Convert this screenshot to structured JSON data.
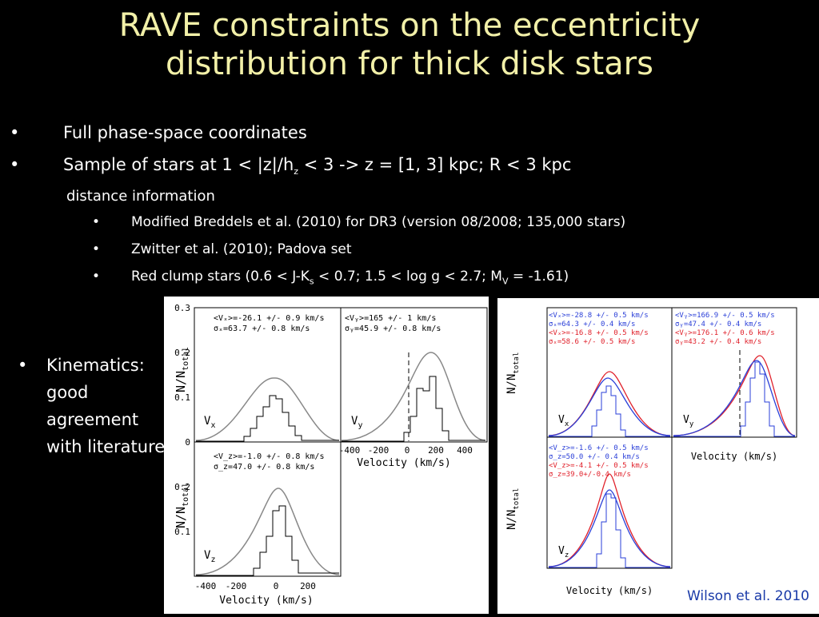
{
  "title": {
    "line1": "RAVE constraints on the eccentricity",
    "line2": "distribution for thick disk stars"
  },
  "bullets": {
    "b1": "Full phase-space coordinates",
    "b2_pre": "Sample of stars at 1 < |z|/h",
    "b2_sub": "z",
    "b2_post": " < 3 -> z = [1, 3] kpc; R < 3 kpc",
    "b2_cont": "distance information",
    "s1": "Modified Breddels et al. (2010) for DR3 (version 08/2008; 135,000 stars)",
    "s2": "Zwitter et al. (2010); Padova set",
    "s3_pre": "Red clump stars  (0.6 < J-K",
    "s3_sub1": "s",
    "s3_mid": " < 0.7; 1.5 < log g < 2.7; M",
    "s3_sub2": "V",
    "s3_post": " = -1.61)"
  },
  "kinematics": "Kinematics: good agreement with literature",
  "citation": "Wilson et al. 2010",
  "left_figure": {
    "ylabel": "N/N",
    "ylabel_sub": "total",
    "xlabel": "Velocity (km/s)",
    "yticks": [
      "0",
      "0.1",
      "0.2",
      "0.3"
    ],
    "xticks": [
      "-400",
      "-200",
      "0",
      "200",
      "400"
    ],
    "vx": {
      "label": "V",
      "sub": "x",
      "mean": "<Vₓ>=-26.1 +/- 0.9 km/s",
      "sigma": "σₓ=63.7 +/- 0.8 km/s"
    },
    "vy": {
      "label": "V",
      "sub": "y",
      "mean": "<Vᵧ>=165 +/- 1 km/s",
      "sigma": "σᵧ=45.9 +/- 0.8 km/s"
    },
    "vz": {
      "label": "V",
      "sub": "z",
      "mean": "<V_z>=-1.0 +/- 0.8 km/s",
      "sigma": "σ_z=47.0 +/- 0.8 km/s"
    }
  },
  "right_figure": {
    "ylabel": "N/N",
    "ylabel_sub": "total",
    "xlabel": "Velocity (km/s)",
    "vx": {
      "label": "V",
      "sub": "x",
      "blue": [
        "<Vₓ>=-28.8 +/- 0.5 km/s",
        "σₓ=64.3 +/- 0.4 km/s"
      ],
      "red": [
        "<Vₓ>=-16.8 +/- 0.5 km/s",
        "σₓ=58.6 +/- 0.5 km/s"
      ]
    },
    "vy": {
      "label": "V",
      "sub": "y",
      "blue": [
        "<Vᵧ>=166.9 +/- 0.5 km/s",
        "σᵧ=47.4 +/- 0.4 km/s"
      ],
      "red": [
        "<Vᵧ>=176.1 +/- 0.6 km/s",
        "σᵧ=43.2 +/- 0.4 km/s"
      ]
    },
    "vz": {
      "label": "V",
      "sub": "z",
      "blue": [
        "<V_z>=-1.6 +/- 0.5 km/s",
        "σ_z=50.0 +/- 0.4 km/s"
      ],
      "red": [
        "<V_z>=-4.1 +/- 0.5 km/s",
        "σ_z=39.0+/-0.4 km/s"
      ]
    }
  },
  "colors": {
    "title": "#f2f0a8",
    "blue_series": "#2a3fd8",
    "red_series": "#e0202a",
    "citation": "#1a3aa8"
  }
}
